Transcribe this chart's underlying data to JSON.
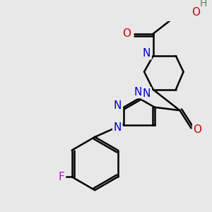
{
  "bg": "#e8e8e8",
  "bond_color": "#000000",
  "bond_lw": 1.8,
  "atom_colors": {
    "N": "#0000cc",
    "O": "#cc0000",
    "F": "#cc00cc",
    "H": "#608060",
    "C": "#000000"
  },
  "fs": 11
}
